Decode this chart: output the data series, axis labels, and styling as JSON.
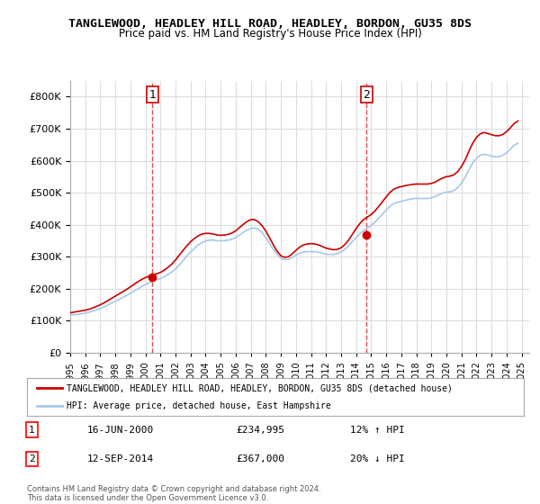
{
  "title": "TANGLEWOOD, HEADLEY HILL ROAD, HEADLEY, BORDON, GU35 8DS",
  "subtitle": "Price paid vs. HM Land Registry's House Price Index (HPI)",
  "legend_line1": "TANGLEWOOD, HEADLEY HILL ROAD, HEADLEY, BORDON, GU35 8DS (detached house)",
  "legend_line2": "HPI: Average price, detached house, East Hampshire",
  "annotation1_label": "1",
  "annotation1_date": "16-JUN-2000",
  "annotation1_price": "£234,995",
  "annotation1_hpi": "12% ↑ HPI",
  "annotation2_label": "2",
  "annotation2_date": "12-SEP-2014",
  "annotation2_price": "£367,000",
  "annotation2_hpi": "20% ↓ HPI",
  "footer": "Contains HM Land Registry data © Crown copyright and database right 2024.\nThis data is licensed under the Open Government Licence v3.0.",
  "hpi_color": "#a8c8e8",
  "price_color": "#cc0000",
  "vline_color": "#cc0000",
  "background_color": "#ffffff",
  "grid_color": "#dddddd",
  "ylim": [
    0,
    850000
  ],
  "yticks": [
    0,
    100000,
    200000,
    300000,
    400000,
    500000,
    600000,
    700000,
    800000
  ],
  "xlim_start": 1995.0,
  "xlim_end": 2025.5,
  "xticks": [
    1995,
    1996,
    1997,
    1998,
    1999,
    2000,
    2001,
    2002,
    2003,
    2004,
    2005,
    2006,
    2007,
    2008,
    2009,
    2010,
    2011,
    2012,
    2013,
    2014,
    2015,
    2016,
    2017,
    2018,
    2019,
    2020,
    2021,
    2022,
    2023,
    2024,
    2025
  ],
  "marker1_x": 2000.46,
  "marker1_y": 234995,
  "marker2_x": 2014.7,
  "marker2_y": 367000,
  "hpi_data_x": [
    1995.0,
    1995.25,
    1995.5,
    1995.75,
    1996.0,
    1996.25,
    1996.5,
    1996.75,
    1997.0,
    1997.25,
    1997.5,
    1997.75,
    1998.0,
    1998.25,
    1998.5,
    1998.75,
    1999.0,
    1999.25,
    1999.5,
    1999.75,
    2000.0,
    2000.25,
    2000.5,
    2000.75,
    2001.0,
    2001.25,
    2001.5,
    2001.75,
    2002.0,
    2002.25,
    2002.5,
    2002.75,
    2003.0,
    2003.25,
    2003.5,
    2003.75,
    2004.0,
    2004.25,
    2004.5,
    2004.75,
    2005.0,
    2005.25,
    2005.5,
    2005.75,
    2006.0,
    2006.25,
    2006.5,
    2006.75,
    2007.0,
    2007.25,
    2007.5,
    2007.75,
    2008.0,
    2008.25,
    2008.5,
    2008.75,
    2009.0,
    2009.25,
    2009.5,
    2009.75,
    2010.0,
    2010.25,
    2010.5,
    2010.75,
    2011.0,
    2011.25,
    2011.5,
    2011.75,
    2012.0,
    2012.25,
    2012.5,
    2012.75,
    2013.0,
    2013.25,
    2013.5,
    2013.75,
    2014.0,
    2014.25,
    2014.5,
    2014.75,
    2015.0,
    2015.25,
    2015.5,
    2015.75,
    2016.0,
    2016.25,
    2016.5,
    2016.75,
    2017.0,
    2017.25,
    2017.5,
    2017.75,
    2018.0,
    2018.25,
    2018.5,
    2018.75,
    2019.0,
    2019.25,
    2019.5,
    2019.75,
    2020.0,
    2020.25,
    2020.5,
    2020.75,
    2021.0,
    2021.25,
    2021.5,
    2021.75,
    2022.0,
    2022.25,
    2022.5,
    2022.75,
    2023.0,
    2023.25,
    2023.5,
    2023.75,
    2024.0,
    2024.25,
    2024.5,
    2024.75
  ],
  "hpi_data_y": [
    118000,
    119000,
    120000,
    122000,
    124000,
    127000,
    130000,
    134000,
    138000,
    143000,
    149000,
    155000,
    161000,
    167000,
    173000,
    179000,
    186000,
    193000,
    200000,
    207000,
    213000,
    219000,
    224000,
    228000,
    232000,
    238000,
    245000,
    252000,
    262000,
    274000,
    288000,
    302000,
    315000,
    326000,
    337000,
    344000,
    349000,
    352000,
    352000,
    350000,
    350000,
    350000,
    352000,
    355000,
    360000,
    368000,
    376000,
    383000,
    388000,
    390000,
    386000,
    376000,
    360000,
    342000,
    323000,
    307000,
    295000,
    291000,
    292000,
    298000,
    305000,
    311000,
    315000,
    316000,
    316000,
    316000,
    314000,
    311000,
    308000,
    307000,
    307000,
    310000,
    315000,
    323000,
    334000,
    347000,
    360000,
    372000,
    382000,
    390000,
    398000,
    408000,
    420000,
    433000,
    446000,
    458000,
    466000,
    470000,
    473000,
    476000,
    479000,
    481000,
    482000,
    482000,
    482000,
    482000,
    484000,
    488000,
    494000,
    499000,
    502000,
    503000,
    507000,
    516000,
    530000,
    549000,
    572000,
    593000,
    608000,
    617000,
    620000,
    618000,
    614000,
    612000,
    613000,
    617000,
    625000,
    636000,
    648000,
    655000
  ],
  "price_data_x": [
    1995.0,
    1995.25,
    1995.5,
    1995.75,
    1996.0,
    1996.25,
    1996.5,
    1996.75,
    1997.0,
    1997.25,
    1997.5,
    1997.75,
    1998.0,
    1998.25,
    1998.5,
    1998.75,
    1999.0,
    1999.25,
    1999.5,
    1999.75,
    2000.0,
    2000.25,
    2000.5,
    2000.75,
    2001.0,
    2001.25,
    2001.5,
    2001.75,
    2002.0,
    2002.25,
    2002.5,
    2002.75,
    2003.0,
    2003.25,
    2003.5,
    2003.75,
    2004.0,
    2004.25,
    2004.5,
    2004.75,
    2005.0,
    2005.25,
    2005.5,
    2005.75,
    2006.0,
    2006.25,
    2006.5,
    2006.75,
    2007.0,
    2007.25,
    2007.5,
    2007.75,
    2008.0,
    2008.25,
    2008.5,
    2008.75,
    2009.0,
    2009.25,
    2009.5,
    2009.75,
    2010.0,
    2010.25,
    2010.5,
    2010.75,
    2011.0,
    2011.25,
    2011.5,
    2011.75,
    2012.0,
    2012.25,
    2012.5,
    2012.75,
    2013.0,
    2013.25,
    2013.5,
    2013.75,
    2014.0,
    2014.25,
    2014.5,
    2014.75,
    2015.0,
    2015.25,
    2015.5,
    2015.75,
    2016.0,
    2016.25,
    2016.5,
    2016.75,
    2017.0,
    2017.25,
    2017.5,
    2017.75,
    2018.0,
    2018.25,
    2018.5,
    2018.75,
    2019.0,
    2019.25,
    2019.5,
    2019.75,
    2020.0,
    2020.25,
    2020.5,
    2020.75,
    2021.0,
    2021.25,
    2021.5,
    2021.75,
    2022.0,
    2022.25,
    2022.5,
    2022.75,
    2023.0,
    2023.25,
    2023.5,
    2023.75,
    2024.0,
    2024.25,
    2024.5,
    2024.75
  ],
  "price_data_y": [
    125000,
    127000,
    129000,
    131000,
    133000,
    136000,
    140000,
    145000,
    150000,
    156000,
    163000,
    170000,
    177000,
    184000,
    191000,
    198000,
    206000,
    214000,
    222000,
    229000,
    235000,
    240000,
    244000,
    247000,
    251000,
    258000,
    267000,
    277000,
    290000,
    305000,
    320000,
    334000,
    347000,
    357000,
    365000,
    371000,
    373000,
    373000,
    371000,
    368000,
    367000,
    368000,
    370000,
    374000,
    381000,
    391000,
    401000,
    410000,
    416000,
    416000,
    409000,
    397000,
    380000,
    359000,
    337000,
    317000,
    303000,
    298000,
    300000,
    309000,
    320000,
    330000,
    337000,
    340000,
    341000,
    340000,
    337000,
    332000,
    327000,
    324000,
    322000,
    323000,
    328000,
    338000,
    352000,
    370000,
    388000,
    404000,
    416000,
    424000,
    432000,
    443000,
    457000,
    472000,
    487000,
    501000,
    511000,
    516000,
    519000,
    522000,
    524000,
    526000,
    527000,
    527000,
    527000,
    527000,
    529000,
    533000,
    540000,
    546000,
    550000,
    552000,
    556000,
    566000,
    582000,
    603000,
    630000,
    655000,
    673000,
    684000,
    688000,
    685000,
    681000,
    678000,
    678000,
    682000,
    691000,
    703000,
    716000,
    724000
  ]
}
